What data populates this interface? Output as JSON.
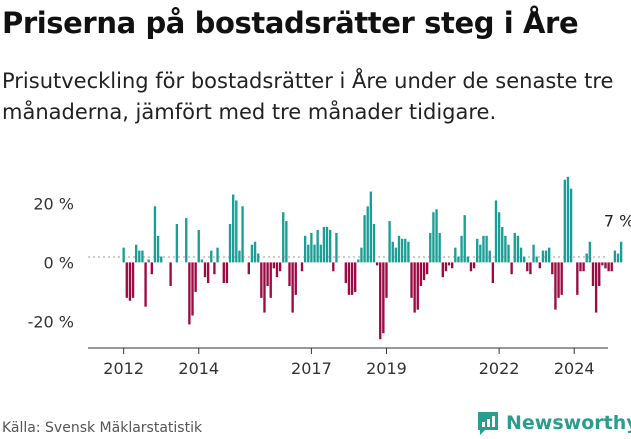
{
  "header": {
    "title": "Priserna på bostadsrätter steg i Åre",
    "subtitle": "Prisutveckling för bostadsrätter i Åre under de senaste tre månaderna, jämfört med tre månader tidigare."
  },
  "footer": {
    "source": "Källa: Svensk Mäklarstatistik",
    "brand": "Newsworthy"
  },
  "colors": {
    "positive": "#1a9e95",
    "negative": "#9c0a42"
  },
  "chart_data": {
    "type": "bar",
    "title": "Priserna på bostadsrätter steg i Åre",
    "xlabel": "",
    "ylabel": "",
    "x_ticks": [
      {
        "value": 2012,
        "label": "2012"
      },
      {
        "value": 2014,
        "label": "2014"
      },
      {
        "value": 2017,
        "label": "2017"
      },
      {
        "value": 2019,
        "label": "2019"
      },
      {
        "value": 2022,
        "label": "2022"
      },
      {
        "value": 2024,
        "label": "2024"
      }
    ],
    "y_ticks": [
      {
        "value": 20,
        "label": "20 %"
      },
      {
        "value": 0,
        "label": "0 %"
      },
      {
        "value": -20,
        "label": "-20 %"
      }
    ],
    "ylim": [
      -29,
      33
    ],
    "xlim": [
      2011.05,
      2024.9
    ],
    "annotation": {
      "label": "7 %",
      "value": 7
    },
    "start": 2012.0,
    "step": 0.0833333,
    "values": [
      5,
      -12,
      -13,
      -12,
      6,
      4,
      4,
      -15,
      1,
      -4,
      19,
      9,
      2,
      0,
      0,
      -8,
      0,
      13,
      0,
      0,
      15,
      -21,
      -18,
      -10,
      11,
      1,
      -5,
      -7,
      4,
      -4,
      5,
      0,
      -7,
      -7,
      13,
      23,
      21,
      4,
      19,
      0,
      -4,
      6,
      7,
      3,
      -12,
      -17,
      -8,
      -12,
      -2,
      -5,
      -3,
      17,
      14,
      -8,
      -17,
      -11,
      0,
      -3,
      9,
      6,
      10,
      6,
      11,
      6,
      12,
      12,
      11,
      -3,
      10,
      0,
      0,
      -7,
      -11,
      -11,
      -10,
      1,
      5,
      16,
      19,
      24,
      13,
      -1,
      -26,
      -24,
      -12,
      14,
      7,
      5,
      9,
      8,
      8,
      7,
      -12,
      -17,
      -16,
      -8,
      -6,
      -4,
      10,
      17,
      18,
      10,
      -5,
      -3,
      -1,
      -2,
      5,
      2,
      9,
      16,
      2,
      -3,
      -2,
      8,
      6,
      9,
      9,
      4,
      -7,
      21,
      17,
      12,
      9,
      6,
      -4,
      10,
      9,
      5,
      2,
      -3,
      -4,
      6,
      2,
      -2,
      4,
      4,
      5,
      -4,
      -16,
      -12,
      -11,
      28,
      29,
      25,
      0,
      -11,
      -3,
      -3,
      3,
      7,
      -8,
      -17,
      -8,
      -1,
      -2,
      -3,
      -3,
      4,
      3,
      7
    ]
  }
}
